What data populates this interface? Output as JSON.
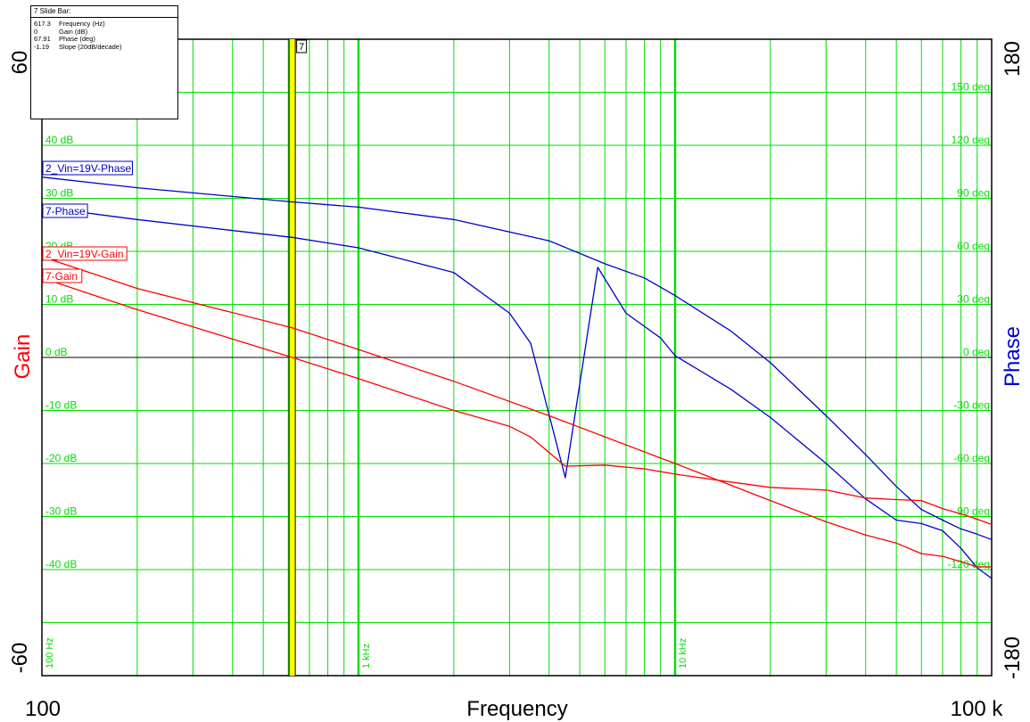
{
  "slide_bar": {
    "title": "7  Slide Bar:",
    "rows": [
      {
        "value": "617.3",
        "label": "Frequency (Hz)"
      },
      {
        "value": "0",
        "label": "Gain (dB)"
      },
      {
        "value": "67.91",
        "label": "Phase (deg)"
      },
      {
        "value": "-1.19",
        "label": "Slope (20dB/decade)"
      }
    ],
    "cursor_label": "7",
    "cursor_frequency": 617.3,
    "cursor_color": "#ffff00"
  },
  "colors": {
    "grid": "#00dd00",
    "gain": "#ff0000",
    "phase": "#0000cc",
    "zero_line": "#000000"
  },
  "chart_data": {
    "type": "line",
    "x_scale": "log",
    "xlim": [
      100,
      100000
    ],
    "xlabel": "Frequency",
    "x_end_labels": [
      "100",
      "100 k"
    ],
    "x_decade_labels": [
      "100 Hz",
      "1 kHz",
      "10 kHz"
    ],
    "left_axis": {
      "label": "Gain",
      "lim": [
        -60,
        60
      ],
      "end_labels": [
        "60",
        "-60"
      ],
      "tick_labels": [
        "40 dB",
        "30 dB",
        "20 dB",
        "10 dB",
        "0 dB",
        "-10 dB",
        "-20 dB",
        "-30 dB",
        "-40 dB"
      ],
      "tick_values": [
        40,
        30,
        20,
        10,
        0,
        -10,
        -20,
        -30,
        -40
      ]
    },
    "right_axis": {
      "label": "Phase",
      "lim": [
        -180,
        180
      ],
      "end_labels": [
        "180",
        "-180"
      ],
      "tick_labels": [
        "150 deg",
        "120 deg",
        "90 deg",
        "60 deg",
        "30 deg",
        "0 deg",
        "-30 deg",
        "-60 deg",
        "-90 deg",
        "-120 deg"
      ],
      "tick_values": [
        150,
        120,
        90,
        60,
        30,
        0,
        -30,
        -60,
        -90,
        -120
      ]
    },
    "series": [
      {
        "name": "2_Vin=19V-Phase",
        "axis": "phase",
        "color": "#0000cc",
        "width": 1.3,
        "x": [
          100,
          200,
          617,
          1000,
          2000,
          4000,
          6000,
          8000,
          10000,
          15000,
          20000,
          30000,
          40000,
          50000,
          60000,
          70000,
          80000,
          90000,
          100000
        ],
        "y": [
          102,
          96,
          88,
          85,
          78,
          66,
          53,
          45,
          35,
          15,
          -3,
          -33,
          -55,
          -73,
          -86,
          -92,
          -97,
          -100,
          -103
        ]
      },
      {
        "name": "7-Phase",
        "axis": "phase",
        "color": "#0000cc",
        "width": 1.3,
        "x": [
          100,
          200,
          617,
          1000,
          2000,
          3000,
          3500,
          4500,
          5700,
          7000,
          9000,
          10000,
          15000,
          20000,
          30000,
          40000,
          50000,
          60000,
          70000,
          80000,
          90000,
          100000
        ],
        "y": [
          85,
          78,
          67.9,
          62,
          48,
          25,
          8,
          -68,
          51,
          25,
          11,
          1,
          -18,
          -34,
          -60,
          -80,
          -92,
          -94,
          -98,
          -108,
          -119,
          -125
        ]
      },
      {
        "name": "2_Vin=19V-Gain",
        "axis": "gain",
        "color": "#ff0000",
        "width": 1.3,
        "x": [
          100,
          200,
          617,
          1000,
          2000,
          4000,
          10000,
          20000,
          30000,
          40000,
          50000,
          60000,
          70000,
          80000,
          90000,
          100000
        ],
        "y": [
          19,
          13,
          5.6,
          1.5,
          -4.5,
          -11,
          -20,
          -27,
          -31,
          -33.5,
          -35,
          -37,
          -37.5,
          -38.5,
          -39.5,
          -39.5
        ]
      },
      {
        "name": "7-Gain",
        "axis": "gain",
        "color": "#ff0000",
        "width": 1.3,
        "x": [
          100,
          200,
          617,
          1000,
          2000,
          3000,
          3500,
          4500,
          6000,
          8000,
          10000,
          15000,
          20000,
          30000,
          40000,
          50000,
          60000,
          70000,
          80000,
          90000,
          100000
        ],
        "y": [
          15,
          9,
          0,
          -4,
          -10,
          -13,
          -15,
          -20.5,
          -20.3,
          -21,
          -22,
          -23.5,
          -24.5,
          -25,
          -26.5,
          -26.8,
          -27,
          -28.5,
          -29.5,
          -30.5,
          -31.5
        ]
      }
    ],
    "legend": [
      "2_Vin=19V-Phase",
      "7-Phase",
      "2_Vin=19V-Gain",
      "7-Gain"
    ],
    "grid": true
  }
}
